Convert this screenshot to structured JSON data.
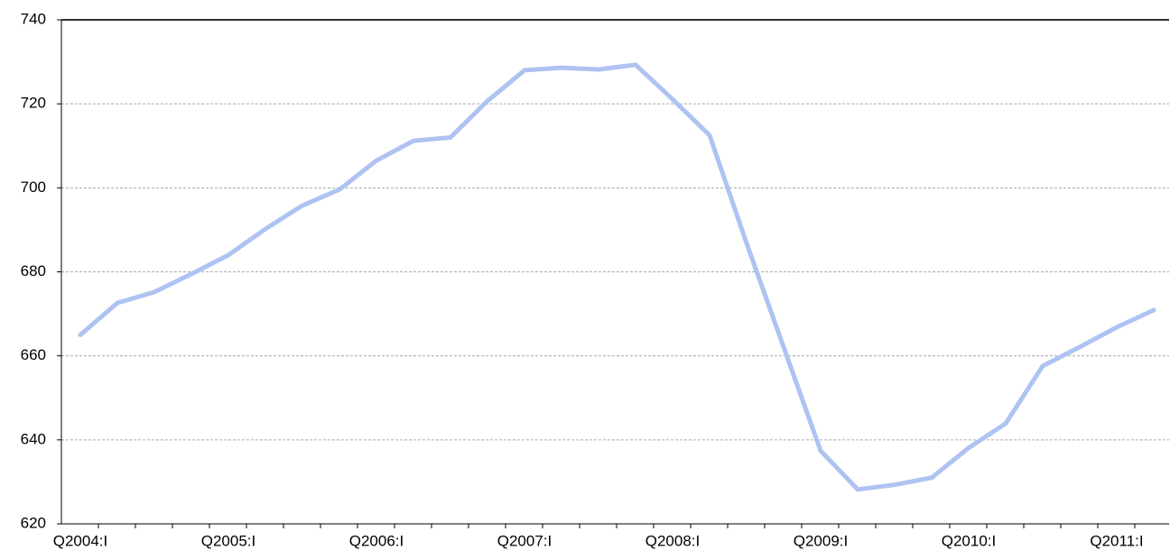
{
  "chart_data": {
    "type": "line",
    "categories": [
      "Q2004:I",
      null,
      null,
      null,
      "Q2005:I",
      null,
      null,
      null,
      "Q2006:I",
      null,
      null,
      null,
      "Q2007:I",
      null,
      null,
      null,
      "Q2008:I",
      null,
      null,
      null,
      "Q2009:I",
      null,
      null,
      null,
      "Q2010:I",
      null,
      null,
      null,
      "Q2011:I",
      null
    ],
    "values": [
      665,
      672.6,
      675.2,
      679.5,
      684,
      690.2,
      695.8,
      699.6,
      706.5,
      711.2,
      712,
      720.7,
      728,
      728.6,
      728.2,
      729.3,
      721.1,
      712.5,
      686.8,
      662.1,
      637.4,
      628.2,
      629.3,
      631,
      638.1,
      643.9,
      657.6,
      662.1,
      666.8,
      670.9
    ],
    "color": "#aec3f2",
    "ylim": [
      620,
      740
    ],
    "yticks": [
      620,
      640,
      660,
      680,
      700,
      720,
      740
    ],
    "grid": true
  }
}
